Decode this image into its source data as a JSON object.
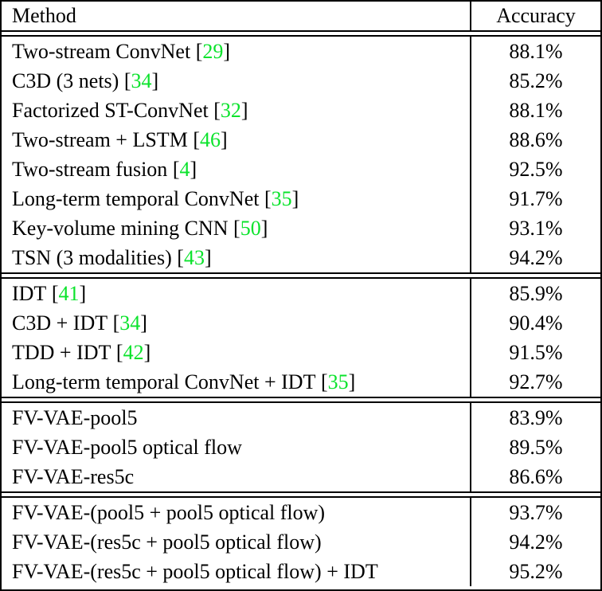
{
  "colors": {
    "citation_green": "#0be32c",
    "border_black": "#000000",
    "text_black": "#000000"
  },
  "header": {
    "method": "Method",
    "accuracy": "Accuracy"
  },
  "sections": [
    {
      "rows": [
        {
          "method": "Two-stream ConvNet",
          "cite": "29",
          "accuracy": "88.1%"
        },
        {
          "method": "C3D (3 nets)",
          "cite": "34",
          "accuracy": "85.2%"
        },
        {
          "method": "Factorized ST-ConvNet",
          "cite": "32",
          "accuracy": "88.1%"
        },
        {
          "method": "Two-stream + LSTM",
          "cite": "46",
          "accuracy": "88.6%"
        },
        {
          "method": "Two-stream fusion",
          "cite": "4",
          "accuracy": "92.5%"
        },
        {
          "method": "Long-term temporal ConvNet",
          "cite": "35",
          "accuracy": "91.7%"
        },
        {
          "method": "Key-volume mining CNN",
          "cite": "50",
          "accuracy": "93.1%"
        },
        {
          "method": "TSN (3 modalities)",
          "cite": "43",
          "accuracy": "94.2%"
        }
      ]
    },
    {
      "rows": [
        {
          "method": "IDT",
          "cite": "41",
          "accuracy": "85.9%"
        },
        {
          "method": "C3D + IDT",
          "cite": "34",
          "accuracy": "90.4%"
        },
        {
          "method": "TDD + IDT",
          "cite": "42",
          "accuracy": "91.5%"
        },
        {
          "method": "Long-term temporal ConvNet + IDT",
          "cite": "35",
          "accuracy": "92.7%"
        }
      ]
    },
    {
      "rows": [
        {
          "method": "FV-VAE-pool5",
          "cite": null,
          "accuracy": "83.9%"
        },
        {
          "method": "FV-VAE-pool5 optical flow",
          "cite": null,
          "accuracy": "89.5%"
        },
        {
          "method": "FV-VAE-res5c",
          "cite": null,
          "accuracy": "86.6%"
        }
      ]
    },
    {
      "rows": [
        {
          "method": "FV-VAE-(pool5 + pool5 optical flow)",
          "cite": null,
          "accuracy": "93.7%"
        },
        {
          "method": "FV-VAE-(res5c + pool5 optical flow)",
          "cite": null,
          "accuracy": "94.2%"
        },
        {
          "method": "FV-VAE-(res5c + pool5 optical flow) + IDT",
          "cite": null,
          "accuracy": "95.2%"
        }
      ]
    }
  ]
}
